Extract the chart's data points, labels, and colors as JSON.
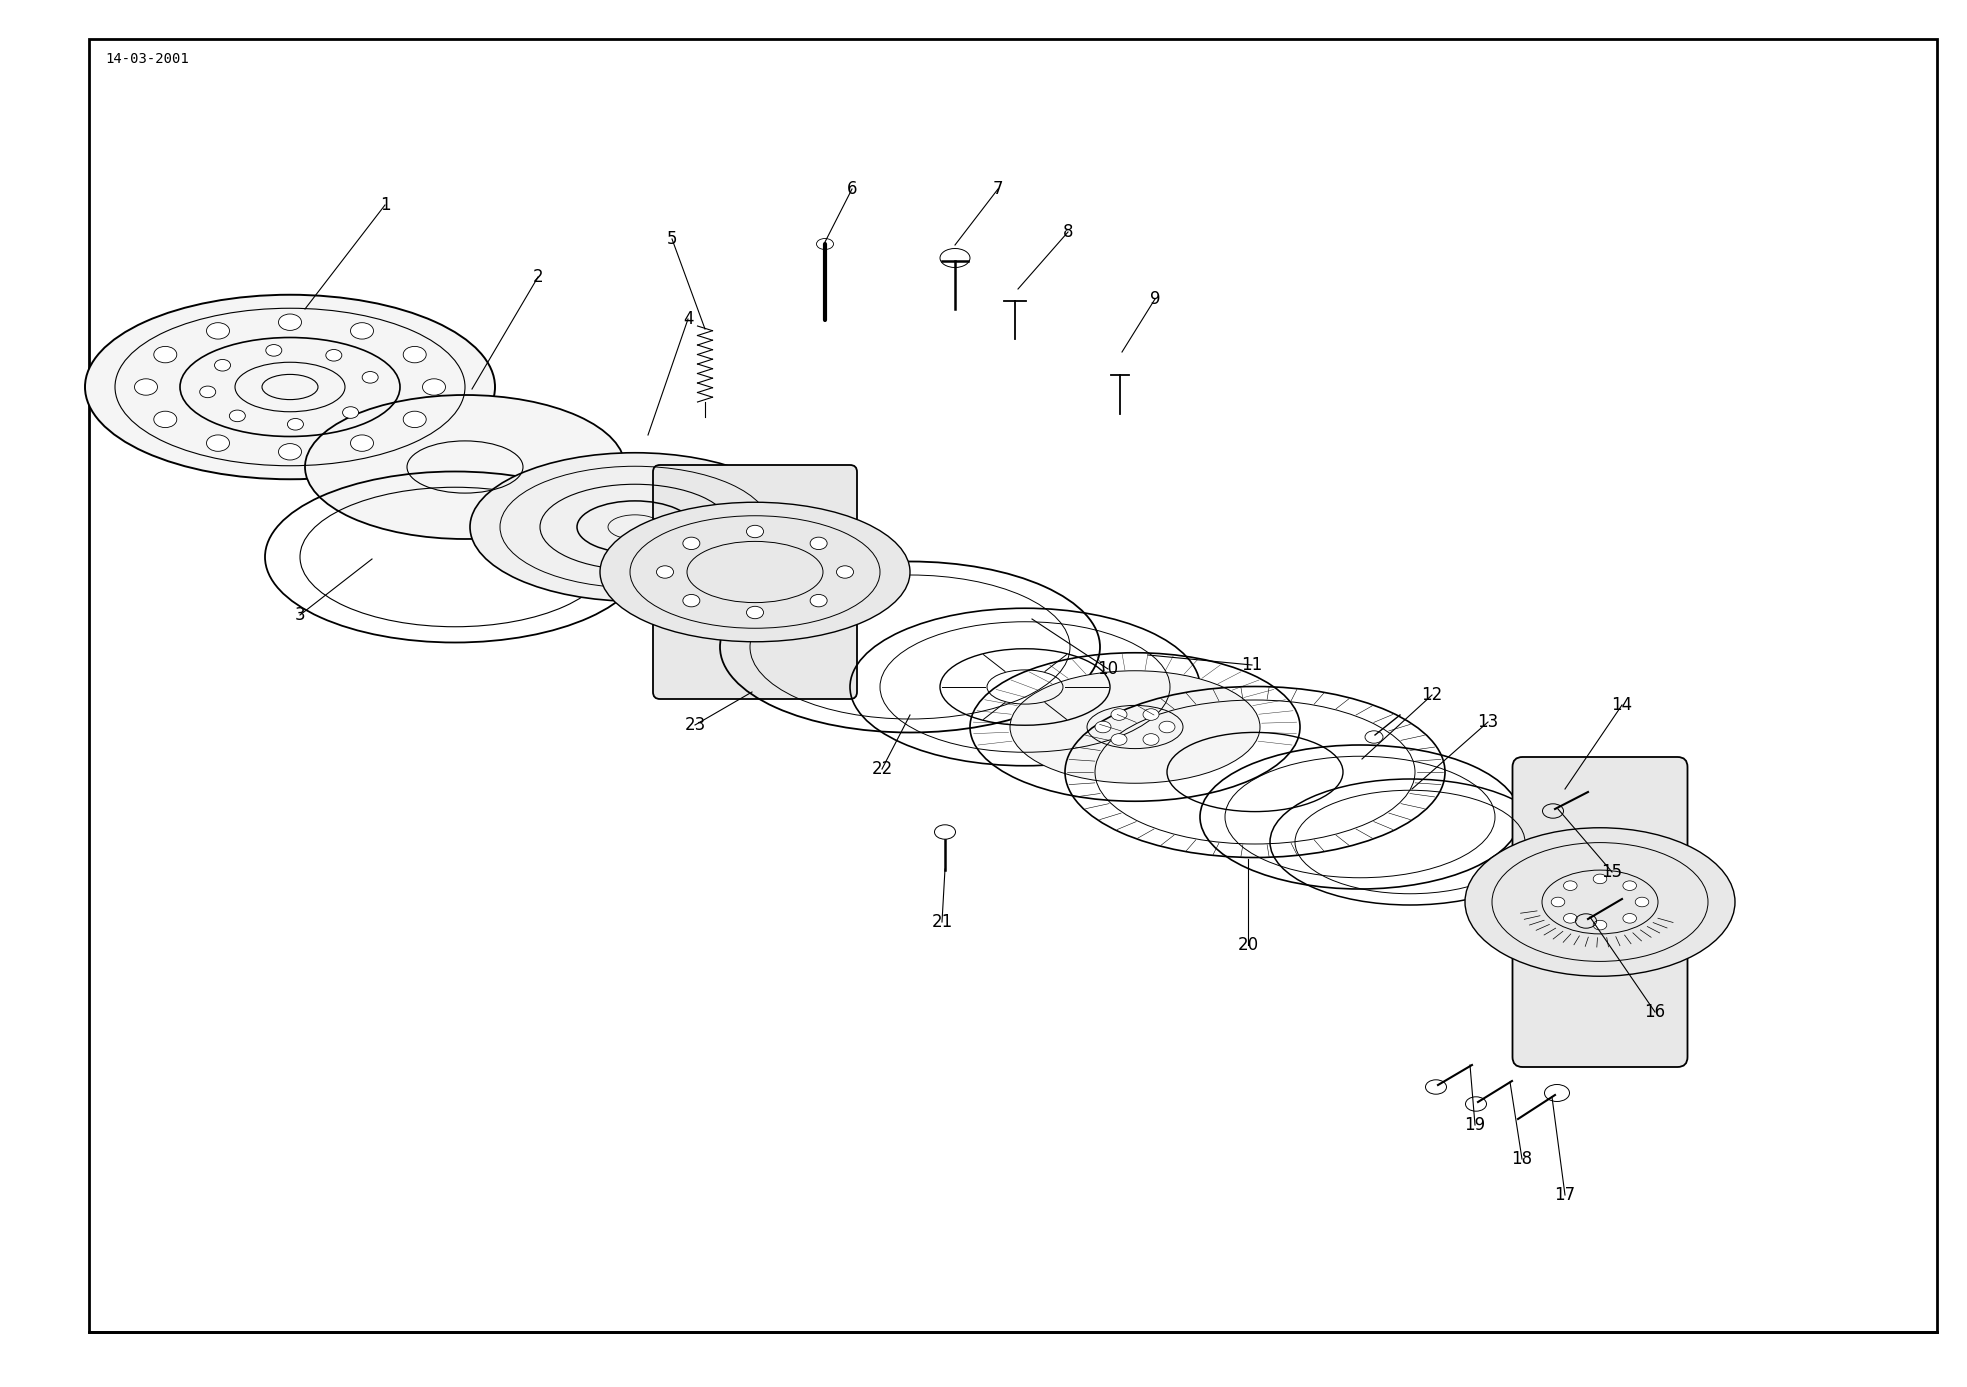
{
  "title": "14-03-2001",
  "bg": "#ffffff",
  "lc": "#000000",
  "fig_w": 19.67,
  "fig_h": 13.87,
  "dpi": 100,
  "border": [
    0.045,
    0.04,
    0.985,
    0.972
  ]
}
